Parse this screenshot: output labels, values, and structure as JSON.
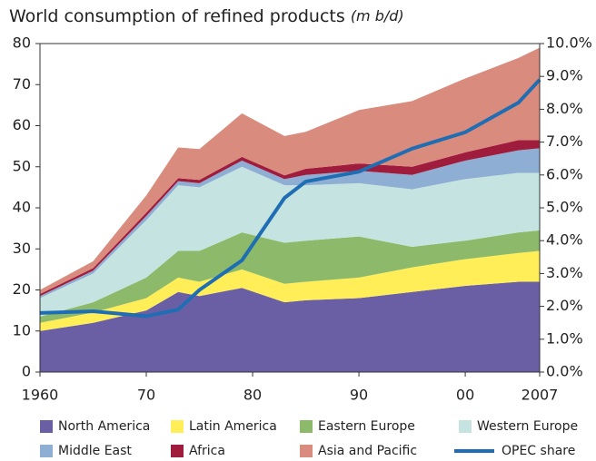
{
  "chart_data": {
    "type": "stacked-area",
    "title": "World consumption of refined products",
    "unit": "(m b/d)",
    "x": [
      1960,
      1965,
      1970,
      1973,
      1975,
      1979,
      1983,
      1985,
      1990,
      1995,
      2000,
      2005,
      2007
    ],
    "series": [
      {
        "name": "North America",
        "color": "#6a5fa5",
        "values": [
          10,
          12,
          15,
          19.5,
          18.5,
          20.5,
          17,
          17.5,
          18,
          19.5,
          21,
          22,
          22
        ]
      },
      {
        "name": "Latin America",
        "color": "#ffee58",
        "values": [
          2,
          2.5,
          3,
          3.5,
          3.5,
          4.5,
          4.5,
          4.5,
          5,
          6,
          6.5,
          7,
          7.5
        ]
      },
      {
        "name": "Eastern Europe",
        "color": "#8cba6a",
        "values": [
          1.5,
          2.5,
          5,
          6.5,
          7.5,
          9,
          10,
          10,
          10,
          5,
          4.5,
          5,
          5
        ]
      },
      {
        "name": "Western Europe",
        "color": "#c5e3e0",
        "values": [
          4.5,
          7,
          14,
          16,
          15.5,
          16,
          14,
          13.5,
          13,
          14,
          15,
          14.5,
          14
        ]
      },
      {
        "name": "Middle East",
        "color": "#8faed4",
        "values": [
          0.5,
          0.7,
          1,
          1,
          1,
          1.5,
          1.5,
          2.5,
          3,
          3.5,
          4.5,
          5.5,
          6
        ]
      },
      {
        "name": "Africa",
        "color": "#a01c3c",
        "values": [
          0.5,
          0.6,
          0.8,
          0.7,
          0.8,
          0.9,
          0.9,
          1.5,
          1.8,
          2,
          2,
          2.5,
          2
        ]
      },
      {
        "name": "Asia and Pacific",
        "color": "#d98b7d",
        "values": [
          1,
          1.7,
          4.2,
          7.5,
          7.5,
          10.6,
          9.6,
          9,
          13,
          16,
          18,
          20,
          22.5
        ]
      },
      {
        "name": "OPEC share",
        "color": "#1f6db3",
        "axis": "y2",
        "kind": "line",
        "values": [
          1.8,
          1.85,
          1.7,
          1.9,
          2.5,
          3.4,
          5.3,
          5.8,
          6.1,
          6.8,
          7.3,
          8.2,
          8.9
        ]
      }
    ],
    "xlim": [
      1960,
      2007
    ],
    "xticks": [
      1960,
      {
        "value": 1970,
        "label": "70"
      },
      {
        "value": 1980,
        "label": "80"
      },
      {
        "value": 1990,
        "label": "90"
      },
      {
        "value": 2000,
        "label": "00"
      },
      2007
    ],
    "ylim": [
      0,
      80
    ],
    "yticks": [
      0,
      10,
      20,
      30,
      40,
      50,
      60,
      70,
      80
    ],
    "y2lim": [
      0,
      10
    ],
    "y2ticks": [
      {
        "value": 0,
        "label": "0.0%"
      },
      {
        "value": 1,
        "label": "1.0%"
      },
      {
        "value": 2,
        "label": "2.0%"
      },
      {
        "value": 3,
        "label": "3.0%"
      },
      {
        "value": 4,
        "label": "4.0%"
      },
      {
        "value": 5,
        "label": "5.0%"
      },
      {
        "value": 6,
        "label": "6.0%"
      },
      {
        "value": 7,
        "label": "7.0%"
      },
      {
        "value": 8,
        "label": "8.0%"
      },
      {
        "value": 9,
        "label": "9.0%"
      },
      {
        "value": 10,
        "label": "10.0%"
      }
    ],
    "legend": "bottom",
    "grid": false
  }
}
